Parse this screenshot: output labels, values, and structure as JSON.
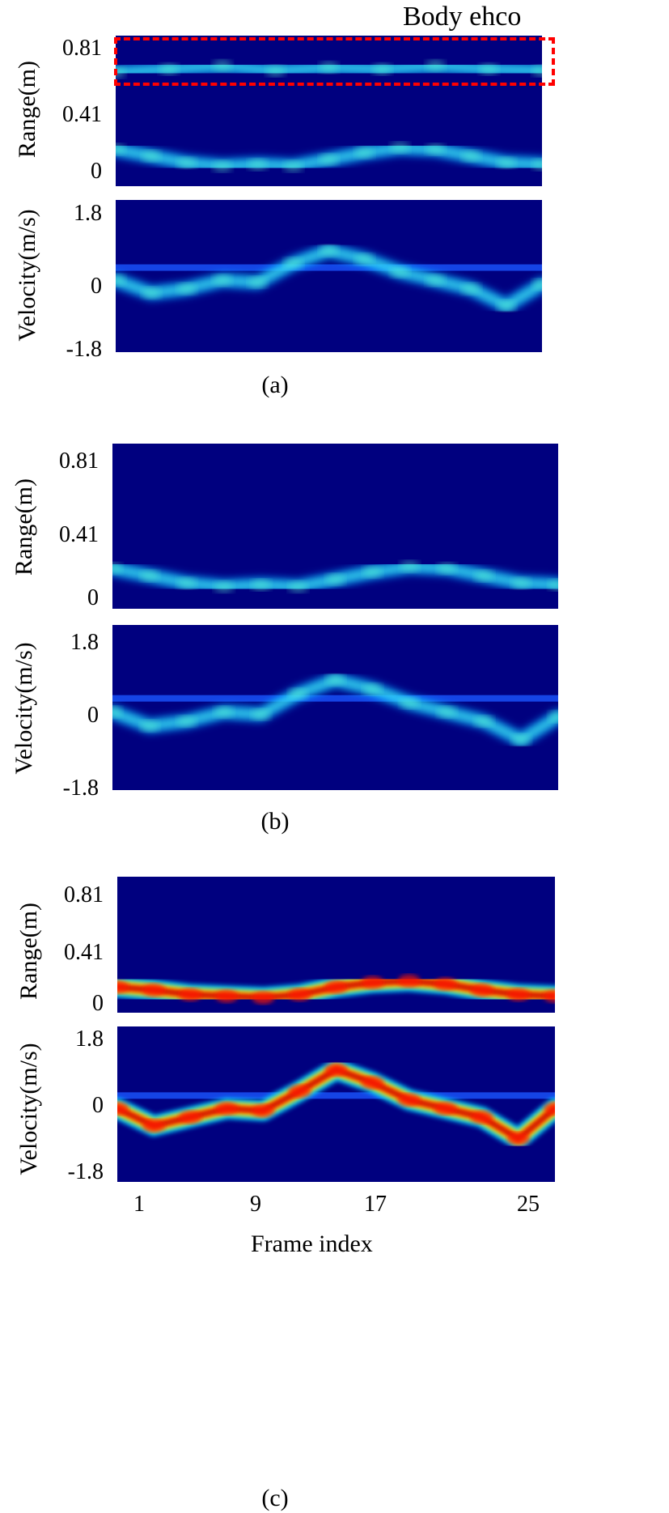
{
  "figure": {
    "annotation": "Body ehco",
    "xlabel": "Frame index",
    "x_ticks": [
      "1",
      "9",
      "17",
      "25"
    ]
  },
  "colors": {
    "background_map": "#00007f",
    "annotation_box": "#ff0000"
  },
  "chart_data": [
    {
      "type": "heatmap",
      "group": "(a)",
      "ylabel": "Range(m)",
      "y_ticks": [
        "0.81",
        "0.41",
        "0"
      ],
      "ylim": [
        0,
        0.9
      ],
      "highlight": "body echo band near 0.65–0.81 m",
      "tracks": [
        {
          "points": [
            [
              1,
              0.22
            ],
            [
              3,
              0.18
            ],
            [
              5,
              0.14
            ],
            [
              7,
              0.12
            ],
            [
              9,
              0.13
            ],
            [
              11,
              0.12
            ],
            [
              13,
              0.16
            ],
            [
              15,
              0.2
            ],
            [
              17,
              0.23
            ],
            [
              19,
              0.22
            ],
            [
              21,
              0.18
            ],
            [
              23,
              0.14
            ],
            [
              25,
              0.13
            ]
          ],
          "intensity": 0.5
        },
        {
          "points": [
            [
              1,
              0.68
            ],
            [
              4,
              0.7
            ],
            [
              7,
              0.72
            ],
            [
              10,
              0.69
            ],
            [
              13,
              0.71
            ],
            [
              16,
              0.7
            ],
            [
              19,
              0.72
            ],
            [
              22,
              0.7
            ],
            [
              25,
              0.69
            ]
          ],
          "intensity": 0.35
        }
      ]
    },
    {
      "type": "heatmap",
      "group": "(a)",
      "ylabel": "Velocity(m/s)",
      "y_ticks": [
        "1.8",
        "0",
        "-1.8"
      ],
      "ylim": [
        -1.8,
        1.8
      ],
      "tracks": [
        {
          "points": [
            [
              1,
              -0.1
            ],
            [
              3,
              -0.4
            ],
            [
              5,
              -0.3
            ],
            [
              7,
              -0.1
            ],
            [
              9,
              -0.15
            ],
            [
              11,
              0.3
            ],
            [
              13,
              0.6
            ],
            [
              15,
              0.4
            ],
            [
              17,
              0.1
            ],
            [
              19,
              -0.1
            ],
            [
              21,
              -0.3
            ],
            [
              23,
              -0.7
            ],
            [
              25,
              -0.2
            ]
          ],
          "intensity": 0.5
        }
      ]
    },
    {
      "type": "heatmap",
      "group": "(b)",
      "ylabel": "Range(m)",
      "y_ticks": [
        "0.81",
        "0.41",
        "0"
      ],
      "ylim": [
        0,
        0.9
      ],
      "tracks": [
        {
          "points": [
            [
              1,
              0.22
            ],
            [
              3,
              0.18
            ],
            [
              5,
              0.14
            ],
            [
              7,
              0.12
            ],
            [
              9,
              0.13
            ],
            [
              11,
              0.12
            ],
            [
              13,
              0.16
            ],
            [
              15,
              0.2
            ],
            [
              17,
              0.23
            ],
            [
              19,
              0.22
            ],
            [
              21,
              0.18
            ],
            [
              23,
              0.14
            ],
            [
              25,
              0.13
            ]
          ],
          "intensity": 0.5
        }
      ]
    },
    {
      "type": "heatmap",
      "group": "(b)",
      "ylabel": "Velocity(m/s)",
      "y_ticks": [
        "1.8",
        "0",
        "-1.8"
      ],
      "ylim": [
        -1.8,
        1.8
      ],
      "tracks": [
        {
          "points": [
            [
              1,
              -0.1
            ],
            [
              3,
              -0.4
            ],
            [
              5,
              -0.3
            ],
            [
              7,
              -0.1
            ],
            [
              9,
              -0.15
            ],
            [
              11,
              0.3
            ],
            [
              13,
              0.6
            ],
            [
              15,
              0.4
            ],
            [
              17,
              0.1
            ],
            [
              19,
              -0.1
            ],
            [
              21,
              -0.3
            ],
            [
              23,
              -0.7
            ],
            [
              25,
              -0.2
            ]
          ],
          "intensity": 0.5
        }
      ]
    },
    {
      "type": "heatmap",
      "group": "(c)",
      "ylabel": "Range(m)",
      "y_ticks": [
        "0.81",
        "0.41",
        "0"
      ],
      "ylim": [
        0,
        0.9
      ],
      "tracks": [
        {
          "points": [
            [
              1,
              0.17
            ],
            [
              3,
              0.15
            ],
            [
              5,
              0.12
            ],
            [
              7,
              0.11
            ],
            [
              9,
              0.1
            ],
            [
              11,
              0.12
            ],
            [
              13,
              0.17
            ],
            [
              15,
              0.2
            ],
            [
              17,
              0.21
            ],
            [
              19,
              0.19
            ],
            [
              21,
              0.15
            ],
            [
              23,
              0.12
            ],
            [
              25,
              0.11
            ]
          ],
          "intensity": 1.0
        }
      ]
    },
    {
      "type": "heatmap",
      "group": "(c)",
      "ylabel": "Velocity(m/s)",
      "y_ticks": [
        "1.8",
        "0",
        "-1.8"
      ],
      "ylim": [
        -1.8,
        1.8
      ],
      "tracks": [
        {
          "points": [
            [
              1,
              -0.1
            ],
            [
              3,
              -0.5
            ],
            [
              5,
              -0.3
            ],
            [
              7,
              -0.1
            ],
            [
              9,
              -0.15
            ],
            [
              11,
              0.3
            ],
            [
              13,
              0.8
            ],
            [
              15,
              0.5
            ],
            [
              17,
              0.1
            ],
            [
              19,
              -0.1
            ],
            [
              21,
              -0.3
            ],
            [
              23,
              -0.8
            ],
            [
              25,
              -0.1
            ]
          ],
          "intensity": 1.0
        }
      ]
    }
  ],
  "x_range": [
    1,
    25
  ]
}
